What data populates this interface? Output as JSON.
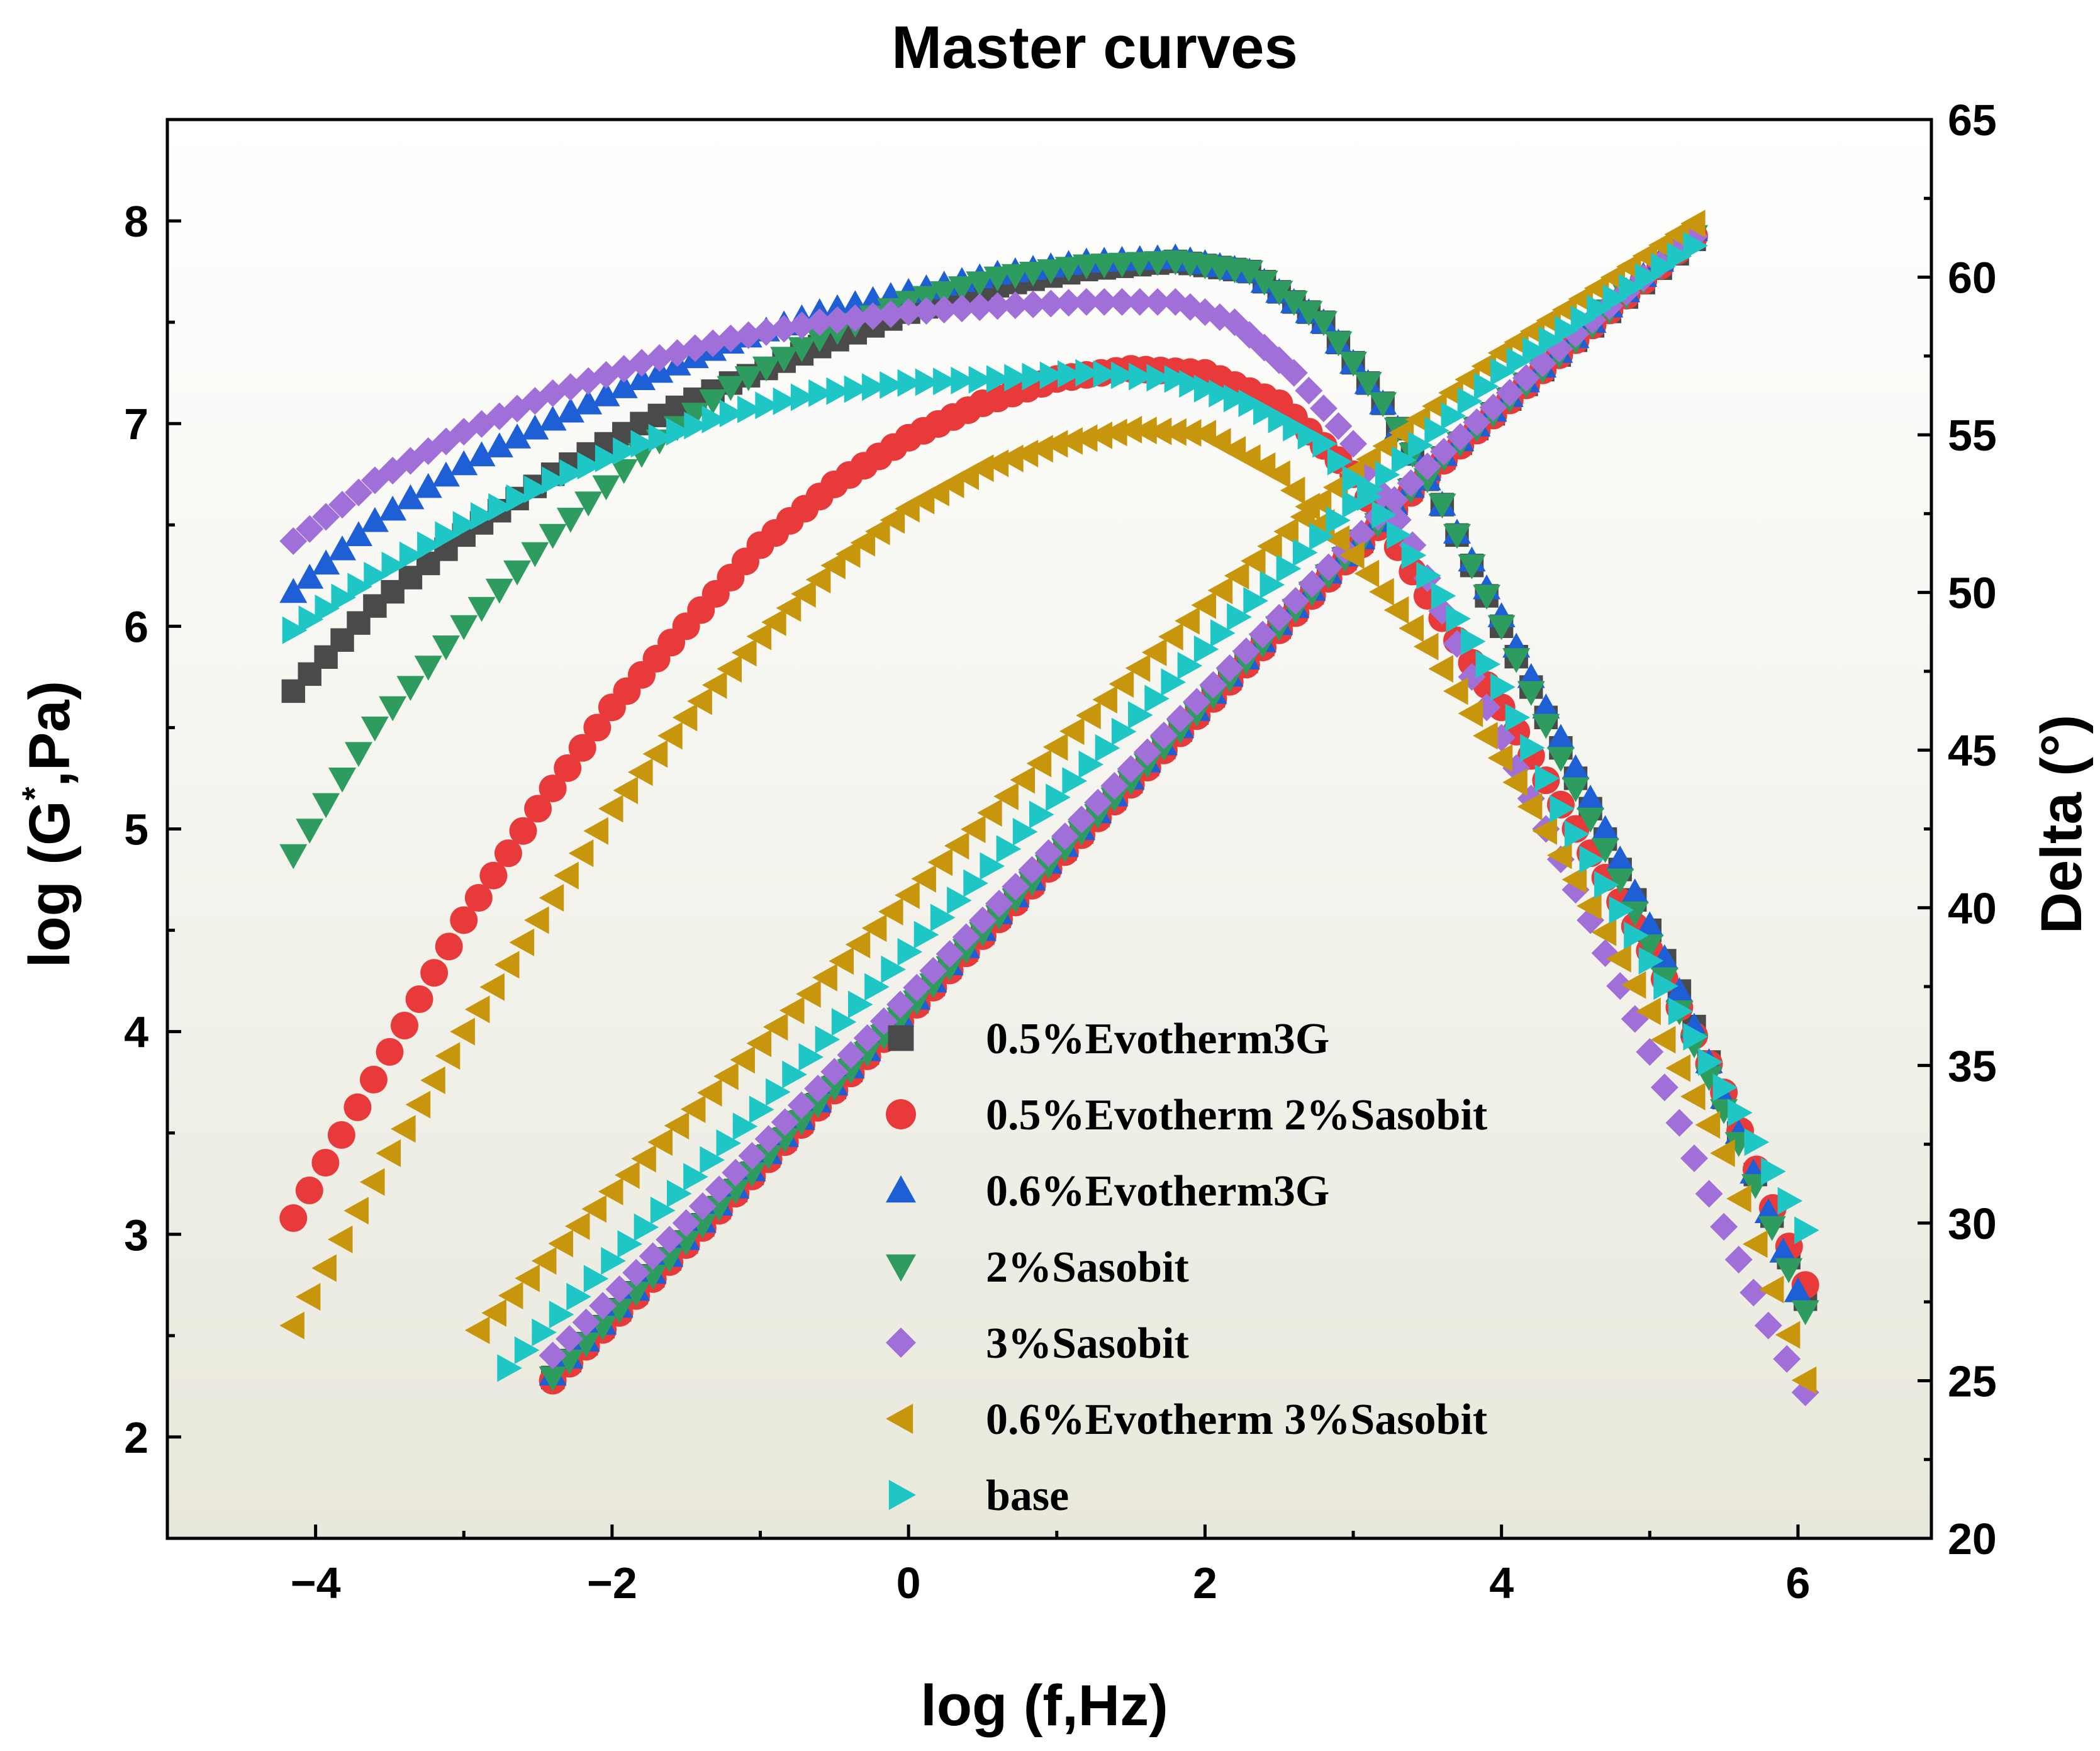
{
  "chart_data": {
    "type": "scatter",
    "title": "Master curves",
    "xlabel": "log (f,Hz)",
    "ylabel_left": "log (G*,Pa)",
    "ylabel_left_main": "log (G",
    "ylabel_left_sup": "*",
    "ylabel_left_tail": ",Pa)",
    "ylabel_right": "Delta (°)",
    "xlim": [
      -5,
      6.9
    ],
    "ylim_left": [
      1.5,
      8.5
    ],
    "ylim_right": [
      20,
      65
    ],
    "x_ticks": [
      -4,
      -2,
      0,
      2,
      4,
      6
    ],
    "x_tick_labels": [
      "−4",
      "−2",
      "0",
      "2",
      "4",
      "6"
    ],
    "y_left_ticks": [
      2,
      3,
      4,
      5,
      6,
      7,
      8
    ],
    "y_left_tick_labels": [
      "2",
      "3",
      "4",
      "5",
      "6",
      "7",
      "8"
    ],
    "y_right_ticks": [
      20,
      25,
      30,
      35,
      40,
      45,
      50,
      55,
      60,
      65
    ],
    "y_right_tick_labels": [
      "20",
      "25",
      "30",
      "35",
      "40",
      "45",
      "50",
      "55",
      "60",
      "65"
    ],
    "legend_position": "bottom-center",
    "series": [
      {
        "name": "0.5%Evotherm3G",
        "marker": "square",
        "color": "#4a4a4a",
        "g_star": {
          "x": [
            -4.15,
            -3.6,
            -3.0,
            -2.4,
            -1.8,
            -1.2,
            -0.6,
            0.0,
            0.6,
            1.2,
            1.8,
            2.3,
            2.8,
            3.2,
            3.6,
            4.0,
            4.4,
            4.8,
            5.2,
            5.6,
            6.05
          ],
          "y": [
            5.68,
            6.1,
            6.45,
            6.75,
            7.0,
            7.2,
            7.38,
            7.55,
            7.68,
            7.76,
            7.8,
            7.75,
            7.5,
            7.1,
            6.6,
            6.0,
            5.4,
            4.8,
            4.2,
            3.5,
            2.68
          ]
        },
        "delta": {
          "x": [
            -2.4,
            -1.5,
            -0.5,
            0.5,
            1.5,
            2.5,
            3.5,
            4.5,
            5.3
          ],
          "y": [
            25.1,
            29.4,
            34.3,
            39.2,
            44.0,
            48.9,
            53.8,
            58.0,
            61.2
          ]
        }
      },
      {
        "name": "0.5%Evotherm 2%Sasobit",
        "marker": "circle",
        "color": "#e83a3a",
        "g_star": {
          "x": [
            -4.15,
            -3.5,
            -3.0,
            -2.5,
            -2.0,
            -1.5,
            -1.0,
            -0.5,
            0.0,
            0.5,
            1.0,
            1.5,
            2.0,
            2.5,
            3.0,
            3.5,
            4.0,
            4.5,
            5.0,
            5.5,
            6.05
          ],
          "y": [
            3.08,
            3.9,
            4.55,
            5.1,
            5.6,
            6.0,
            6.4,
            6.7,
            6.93,
            7.1,
            7.22,
            7.27,
            7.25,
            7.1,
            6.75,
            6.15,
            5.6,
            5.0,
            4.4,
            3.7,
            2.75
          ]
        },
        "delta": {
          "x": [
            -2.4,
            -1.5,
            -0.5,
            0.5,
            1.5,
            2.5,
            3.5,
            4.5,
            5.3
          ],
          "y": [
            25.0,
            29.3,
            34.2,
            39.1,
            43.9,
            48.8,
            53.7,
            58.0,
            61.3
          ]
        }
      },
      {
        "name": "0.6%Evotherm3G",
        "marker": "triangle-up",
        "color": "#1f5fd6",
        "g_star": {
          "x": [
            -4.15,
            -3.6,
            -3.0,
            -2.4,
            -1.8,
            -1.2,
            -0.6,
            0.0,
            0.6,
            1.2,
            1.8,
            2.3,
            2.8,
            3.2,
            3.6,
            4.0,
            4.4,
            4.8,
            5.2,
            5.6,
            6.0
          ],
          "y": [
            6.17,
            6.52,
            6.8,
            7.02,
            7.22,
            7.4,
            7.55,
            7.65,
            7.74,
            7.8,
            7.82,
            7.75,
            7.5,
            7.1,
            6.6,
            6.05,
            5.45,
            4.85,
            4.2,
            3.5,
            2.72
          ]
        },
        "delta": {
          "x": [
            -2.4,
            -1.5,
            -0.5,
            0.5,
            1.5,
            2.5,
            3.5,
            4.5,
            5.3
          ],
          "y": [
            25.2,
            29.5,
            34.4,
            39.3,
            44.1,
            49.0,
            53.9,
            58.1,
            61.5
          ]
        }
      },
      {
        "name": "2%Sasobit",
        "marker": "triangle-down",
        "color": "#2e9c5e",
        "g_star": {
          "x": [
            -4.15,
            -3.6,
            -3.0,
            -2.4,
            -1.8,
            -1.2,
            -0.6,
            0.0,
            0.6,
            1.2,
            1.8,
            2.3,
            2.8,
            3.2,
            3.6,
            4.0,
            4.4,
            4.8,
            5.2,
            5.6,
            6.05
          ],
          "y": [
            4.87,
            5.5,
            6.0,
            6.45,
            6.85,
            7.18,
            7.42,
            7.6,
            7.72,
            7.78,
            7.8,
            7.75,
            7.5,
            7.1,
            6.6,
            6.0,
            5.35,
            4.75,
            4.1,
            3.45,
            2.62
          ]
        },
        "delta": {
          "x": [
            -2.4,
            -1.5,
            -0.5,
            0.5,
            1.5,
            2.5,
            3.5,
            4.5,
            5.3
          ],
          "y": [
            25.1,
            29.4,
            34.3,
            39.2,
            44.0,
            48.9,
            53.8,
            58.0,
            61.3
          ]
        }
      },
      {
        "name": "3%Sasobit",
        "marker": "diamond",
        "color": "#a070d8",
        "g_star": {
          "x": [
            -4.15,
            -3.6,
            -3.0,
            -2.4,
            -1.8,
            -1.2,
            -0.6,
            0.0,
            0.6,
            1.2,
            1.8,
            2.2,
            2.6,
            3.0,
            3.4,
            3.8,
            4.2,
            4.6,
            5.0,
            5.4,
            5.8,
            6.05
          ],
          "y": [
            6.42,
            6.72,
            6.96,
            7.15,
            7.3,
            7.42,
            7.5,
            7.55,
            7.58,
            7.6,
            7.6,
            7.5,
            7.25,
            6.9,
            6.4,
            5.75,
            5.15,
            4.55,
            3.9,
            3.2,
            2.55,
            2.22
          ]
        },
        "delta": {
          "x": [
            -2.4,
            -1.5,
            -0.5,
            0.5,
            1.5,
            2.5,
            3.5,
            4.5,
            5.3
          ],
          "y": [
            25.8,
            30.0,
            34.8,
            39.6,
            44.4,
            49.2,
            54.0,
            58.2,
            61.3
          ]
        }
      },
      {
        "name": "0.6%Evotherm 3%Sasobit",
        "marker": "triangle-left",
        "color": "#c8960c",
        "g_star": {
          "x": [
            -4.15,
            -3.5,
            -3.0,
            -2.5,
            -2.0,
            -1.5,
            -1.0,
            -0.5,
            0.0,
            0.5,
            1.0,
            1.5,
            2.0,
            2.5,
            3.0,
            3.5,
            4.0,
            4.5,
            5.0,
            5.5,
            6.05
          ],
          "y": [
            2.55,
            3.4,
            4.0,
            4.55,
            5.1,
            5.55,
            5.95,
            6.3,
            6.58,
            6.78,
            6.9,
            6.97,
            6.95,
            6.75,
            6.35,
            5.9,
            5.35,
            4.75,
            4.1,
            3.4,
            2.28
          ]
        },
        "delta": {
          "x": [
            -2.9,
            -2.0,
            -1.0,
            0.0,
            1.0,
            2.0,
            3.0,
            4.0,
            5.3
          ],
          "y": [
            26.6,
            31.0,
            35.7,
            40.4,
            45.1,
            49.6,
            53.8,
            57.6,
            61.7
          ]
        }
      },
      {
        "name": "base",
        "marker": "triangle-right",
        "color": "#1fc6c6",
        "g_star": {
          "x": [
            -4.15,
            -3.6,
            -3.0,
            -2.4,
            -1.8,
            -1.2,
            -0.6,
            0.0,
            0.6,
            1.2,
            1.8,
            2.3,
            2.8,
            3.2,
            3.6,
            4.0,
            4.4,
            4.8,
            5.2,
            5.6,
            6.05
          ],
          "y": [
            5.98,
            6.25,
            6.5,
            6.72,
            6.9,
            7.05,
            7.15,
            7.2,
            7.22,
            7.25,
            7.22,
            7.1,
            6.9,
            6.55,
            6.15,
            5.7,
            5.1,
            4.6,
            4.1,
            3.6,
            3.02
          ]
        },
        "delta": {
          "x": [
            -2.7,
            -2.0,
            -1.0,
            0.0,
            1.0,
            2.0,
            3.0,
            4.0,
            5.3
          ],
          "y": [
            25.4,
            28.8,
            33.6,
            38.6,
            43.5,
            48.2,
            52.8,
            57.0,
            61.0
          ]
        }
      }
    ]
  }
}
